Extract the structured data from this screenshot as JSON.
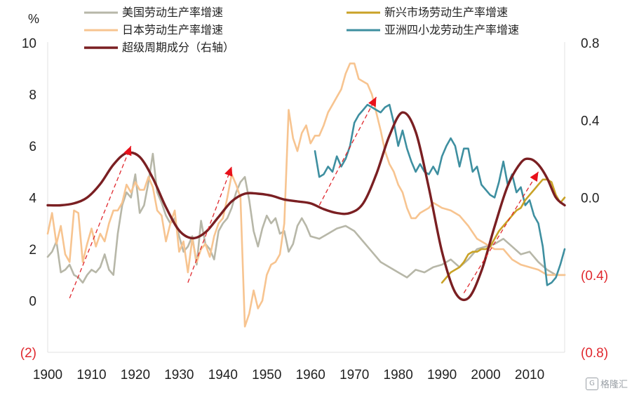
{
  "watermark": {
    "text": "格隆汇",
    "badge": "G"
  },
  "chart_data": {
    "type": "line",
    "title": "",
    "left_axis": {
      "unit": "%",
      "ylim": [
        -2,
        10
      ],
      "ticks": [
        "(2)",
        "0",
        "2",
        "4",
        "6",
        "8",
        "10"
      ],
      "tick_values": [
        -2,
        0,
        2,
        4,
        6,
        8,
        10
      ]
    },
    "right_axis": {
      "ylim": [
        -0.8,
        0.8
      ],
      "ticks": [
        "(0.8)",
        "(0.4)",
        "0.0",
        "0.4",
        "0.8"
      ],
      "tick_values": [
        -0.8,
        -0.4,
        0.0,
        0.4,
        0.8
      ]
    },
    "x_axis": {
      "xlim": [
        1900,
        2020
      ],
      "ticks": [
        "1900",
        "1910",
        "1920",
        "1930",
        "1940",
        "1950",
        "1960",
        "1970",
        "1980",
        "1990",
        "2000",
        "2010"
      ],
      "tick_values": [
        1900,
        1910,
        1920,
        1930,
        1940,
        1950,
        1960,
        1970,
        1980,
        1990,
        2000,
        2010
      ]
    },
    "legend": [
      {
        "name": "美国劳动生产率增速",
        "color": "#b7b7a8"
      },
      {
        "name": "新兴市场劳动生产率增速",
        "color": "#c9a227"
      },
      {
        "name": "日本劳动生产率增速",
        "color": "#f7c490"
      },
      {
        "name": "亚洲四小龙劳动生产率增速",
        "color": "#3e8fa0"
      },
      {
        "name": "超级周期成分（右轴）",
        "color": "#7a1f22"
      }
    ],
    "series": [
      {
        "name": "美国劳动生产率增速",
        "axis": "left",
        "color": "#b7b7a8",
        "x": [
          1900,
          1901,
          1902,
          1903,
          1904,
          1905,
          1906,
          1907,
          1908,
          1909,
          1910,
          1911,
          1912,
          1913,
          1914,
          1915,
          1916,
          1917,
          1918,
          1919,
          1920,
          1921,
          1922,
          1923,
          1924,
          1925,
          1926,
          1927,
          1928,
          1929,
          1930,
          1931,
          1932,
          1933,
          1934,
          1935,
          1936,
          1937,
          1938,
          1939,
          1940,
          1941,
          1942,
          1943,
          1944,
          1945,
          1946,
          1947,
          1948,
          1949,
          1950,
          1951,
          1952,
          1953,
          1954,
          1955,
          1956,
          1957,
          1958,
          1959,
          1960,
          1962,
          1964,
          1966,
          1968,
          1970,
          1972,
          1974,
          1976,
          1978,
          1980,
          1982,
          1984,
          1986,
          1988,
          1990,
          1992,
          1994,
          1996,
          1998,
          2000,
          2002,
          2004,
          2006,
          2008,
          2010,
          2012,
          2014,
          2016,
          2018
        ],
        "y": [
          1.7,
          1.9,
          2.3,
          1.1,
          1.2,
          1.4,
          1.0,
          0.9,
          0.7,
          1.0,
          1.2,
          1.1,
          1.3,
          1.8,
          1.2,
          1.0,
          2.6,
          3.7,
          4.2,
          4.0,
          4.9,
          3.4,
          3.7,
          4.6,
          5.7,
          4.2,
          3.8,
          3.3,
          3.0,
          3.2,
          2.5,
          1.9,
          2.1,
          2.5,
          1.4,
          3.1,
          2.2,
          2.0,
          1.6,
          2.7,
          3.0,
          3.2,
          3.6,
          4.2,
          4.6,
          4.8,
          3.9,
          2.7,
          2.1,
          2.8,
          3.3,
          3.0,
          3.2,
          2.6,
          2.7,
          1.9,
          2.2,
          2.9,
          3.2,
          2.9,
          2.5,
          2.4,
          2.6,
          2.8,
          2.9,
          2.7,
          2.3,
          1.9,
          1.5,
          1.3,
          1.1,
          0.9,
          1.2,
          1.1,
          1.3,
          1.4,
          1.6,
          1.3,
          1.6,
          2.0,
          2.1,
          2.2,
          2.4,
          2.1,
          1.8,
          1.9,
          1.5,
          1.2,
          1.0,
          1.0
        ]
      },
      {
        "name": "日本劳动生产率增速",
        "axis": "left",
        "color": "#f7c490",
        "x": [
          1900,
          1901,
          1902,
          1903,
          1904,
          1905,
          1906,
          1907,
          1908,
          1909,
          1910,
          1911,
          1912,
          1913,
          1914,
          1915,
          1916,
          1917,
          1918,
          1919,
          1920,
          1921,
          1922,
          1923,
          1924,
          1925,
          1926,
          1927,
          1928,
          1929,
          1930,
          1931,
          1932,
          1933,
          1934,
          1935,
          1936,
          1937,
          1938,
          1939,
          1940,
          1941,
          1942,
          1943,
          1944,
          1945,
          1946,
          1947,
          1948,
          1949,
          1950,
          1951,
          1952,
          1953,
          1954,
          1955,
          1956,
          1957,
          1958,
          1959,
          1960,
          1961,
          1962,
          1963,
          1964,
          1965,
          1966,
          1967,
          1968,
          1969,
          1970,
          1971,
          1972,
          1973,
          1974,
          1975,
          1976,
          1977,
          1978,
          1979,
          1980,
          1981,
          1982,
          1983,
          1984,
          1985,
          1986,
          1987,
          1988,
          1989,
          1990,
          1992,
          1994,
          1996,
          1998,
          2000,
          2002,
          2004,
          2006,
          2008,
          2010,
          2012,
          2014,
          2016,
          2018
        ],
        "y": [
          2.6,
          3.4,
          2.2,
          2.9,
          1.8,
          1.5,
          3.5,
          3.4,
          1.5,
          2.2,
          2.8,
          2.1,
          2.6,
          2.3,
          3.0,
          3.5,
          3.5,
          3.8,
          4.5,
          4.2,
          4.6,
          4.3,
          4.3,
          4.8,
          4.4,
          3.5,
          3.3,
          2.3,
          3.0,
          3.5,
          1.9,
          2.3,
          1.1,
          2.4,
          1.5,
          2.0,
          2.2,
          1.7,
          2.5,
          3.0,
          3.2,
          4.0,
          4.9,
          4.5,
          4.0,
          -1.0,
          -0.5,
          0.4,
          -0.3,
          0.0,
          1.0,
          1.4,
          1.5,
          1.8,
          3.0,
          7.4,
          6.3,
          5.8,
          6.5,
          6.8,
          6.1,
          6.4,
          6.4,
          6.8,
          7.3,
          7.6,
          7.9,
          8.2,
          8.8,
          9.2,
          9.2,
          8.6,
          8.5,
          8.4,
          8.0,
          7.3,
          6.6,
          5.8,
          5.3,
          5.0,
          4.5,
          4.2,
          3.6,
          3.2,
          3.2,
          3.4,
          3.5,
          3.6,
          3.8,
          3.7,
          3.6,
          3.5,
          3.3,
          2.9,
          2.4,
          2.2,
          2.0,
          2.0,
          1.6,
          1.4,
          1.3,
          1.2,
          1.0,
          1.0,
          1.0
        ]
      },
      {
        "name": "亚洲四小龙劳动生产率增速",
        "axis": "left",
        "color": "#3e8fa0",
        "x": [
          1961,
          1962,
          1963,
          1964,
          1965,
          1966,
          1967,
          1968,
          1969,
          1970,
          1971,
          1972,
          1973,
          1974,
          1975,
          1976,
          1977,
          1978,
          1979,
          1980,
          1981,
          1982,
          1983,
          1984,
          1985,
          1986,
          1987,
          1988,
          1989,
          1990,
          1991,
          1992,
          1993,
          1994,
          1995,
          1996,
          1997,
          1998,
          1999,
          2000,
          2001,
          2002,
          2003,
          2004,
          2005,
          2006,
          2007,
          2008,
          2009,
          2010,
          2011,
          2012,
          2013,
          2014,
          2015,
          2016,
          2017,
          2018
        ],
        "y": [
          5.8,
          4.8,
          4.9,
          5.2,
          5.0,
          5.6,
          5.2,
          5.5,
          6.0,
          6.9,
          7.2,
          7.4,
          7.6,
          7.5,
          7.4,
          7.3,
          7.5,
          7.6,
          6.9,
          6.0,
          6.6,
          5.9,
          5.4,
          5.0,
          5.3,
          5.0,
          4.9,
          5.2,
          4.9,
          5.6,
          6.0,
          6.3,
          6.0,
          5.2,
          5.9,
          5.9,
          5.0,
          5.2,
          4.5,
          4.3,
          4.1,
          4.0,
          4.6,
          5.4,
          4.5,
          4.9,
          4.2,
          4.4,
          3.7,
          3.9,
          3.3,
          3.0,
          2.1,
          0.6,
          0.7,
          0.9,
          1.4,
          2.0
        ]
      },
      {
        "name": "新兴市场劳动生产率增速",
        "axis": "left",
        "color": "#c9a227",
        "x": [
          1990,
          1991,
          1992,
          1993,
          1994,
          1995,
          1996,
          1997,
          1998,
          1999,
          2000,
          2001,
          2002,
          2003,
          2004,
          2005,
          2006,
          2007,
          2008,
          2009,
          2010,
          2011,
          2012,
          2013,
          2014,
          2015,
          2016,
          2017,
          2018
        ],
        "y": [
          0.7,
          0.9,
          1.1,
          1.2,
          1.3,
          1.5,
          1.8,
          1.9,
          1.9,
          2.0,
          2.0,
          2.1,
          2.4,
          2.7,
          2.9,
          3.1,
          3.3,
          3.5,
          3.6,
          3.9,
          4.1,
          4.3,
          4.5,
          4.7,
          4.7,
          4.6,
          4.1,
          3.8,
          4.0
        ]
      },
      {
        "name": "超级周期成分（右轴）",
        "axis": "right",
        "color": "#7a1f22",
        "x": [
          1900,
          1903,
          1906,
          1909,
          1912,
          1915,
          1918,
          1921,
          1924,
          1927,
          1930,
          1933,
          1936,
          1939,
          1942,
          1945,
          1948,
          1951,
          1954,
          1957,
          1960,
          1963,
          1966,
          1969,
          1972,
          1975,
          1978,
          1981,
          1984,
          1987,
          1990,
          1993,
          1996,
          1999,
          2002,
          2005,
          2008,
          2010,
          2012,
          2014,
          2016,
          2018
        ],
        "y": [
          -0.04,
          -0.04,
          -0.03,
          0.0,
          0.07,
          0.17,
          0.23,
          0.21,
          0.1,
          -0.05,
          -0.17,
          -0.21,
          -0.18,
          -0.1,
          -0.02,
          0.02,
          0.02,
          0.01,
          -0.01,
          -0.02,
          -0.03,
          -0.06,
          -0.08,
          -0.08,
          -0.03,
          0.12,
          0.32,
          0.44,
          0.34,
          0.05,
          -0.28,
          -0.49,
          -0.52,
          -0.38,
          -0.15,
          0.06,
          0.18,
          0.2,
          0.17,
          0.1,
          0.0,
          -0.04
        ]
      }
    ],
    "trend_arrows": [
      {
        "x": [
          1905,
          1919
        ],
        "y": [
          0.1,
          6.0
        ]
      },
      {
        "x": [
          1932,
          1942
        ],
        "y": [
          0.7,
          5.2
        ]
      },
      {
        "x": [
          1962,
          1975
        ],
        "y": [
          3.7,
          7.9
        ]
      },
      {
        "x": [
          1995,
          2012
        ],
        "y": [
          0.3,
          5.0
        ]
      }
    ]
  }
}
